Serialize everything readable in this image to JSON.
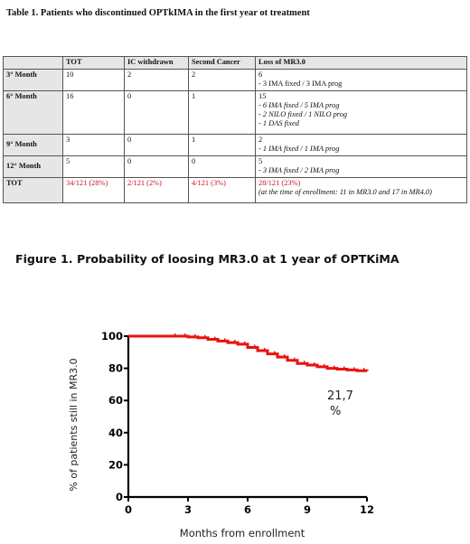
{
  "table": {
    "title": "Table 1. Patients who discontinued OPTkIMA in the first year ot treatment",
    "headers": [
      "",
      "TOT",
      "IC withdrawn",
      "Second Cancer",
      "Loss of MR3.0"
    ],
    "rows": [
      {
        "label": "3° Month",
        "tot": "10",
        "ic": "2",
        "second": "2",
        "loss": "6",
        "loss_details": [
          "- 3 IMA fixed / 3 IMA prog"
        ]
      },
      {
        "label": "6° Month",
        "tot": "16",
        "ic": "0",
        "second": "1",
        "loss": "15",
        "loss_details": [
          "- 6 IMA fixed / 5 IMA prog",
          "- 2 NILO fixed / 1 NILO prog",
          "- 1 DAS fixed"
        ]
      },
      {
        "label": "9° Month",
        "tot": "3",
        "ic": "0",
        "second": "1",
        "loss": "2",
        "loss_details": [
          "- 1 IMA fixed / 1 IMA prog"
        ]
      },
      {
        "label": "12° Month",
        "tot": "5",
        "ic": "0",
        "second": "0",
        "loss": "5",
        "loss_details": [
          "- 3 IMA fixed / 2 IMA prog"
        ]
      },
      {
        "label": "TOT",
        "tot": "34/121 (28%)",
        "ic": "2/121 (2%)",
        "second": "4/121 (3%)",
        "loss": "28/121 (23%)",
        "loss_details": [
          "(at the time of enrollment: 11 in MR3.0 and 17 in MR4.0)"
        ]
      }
    ],
    "highlight_color": "#c8102e"
  },
  "figure": {
    "title": "Figure 1. Probability of loosing MR3.0 at 1 year of OPTKiMA",
    "annotation_line1": "21,7",
    "annotation_line2": "%"
  },
  "chart_data": {
    "type": "line",
    "xlabel": "Months from enrollment",
    "ylabel": "% of patients still in MR3.0",
    "xlim": [
      0,
      12
    ],
    "ylim": [
      0,
      100
    ],
    "xticks": [
      "0",
      "3",
      "6",
      "9",
      "12"
    ],
    "yticks": [
      "0",
      "20",
      "40",
      "60",
      "80",
      "100"
    ],
    "series": [
      {
        "color": "#e8130c",
        "x": [
          0,
          2.5,
          3.0,
          3.5,
          4.0,
          4.5,
          5.0,
          5.5,
          6.0,
          6.5,
          7.0,
          7.5,
          8.0,
          8.5,
          9.0,
          9.5,
          10.0,
          10.5,
          11.0,
          11.5,
          12.0
        ],
        "y": [
          100,
          100,
          99.5,
          99,
          98,
          97,
          96,
          95,
          93,
          91,
          89,
          87,
          85,
          83,
          82,
          81,
          80,
          79.5,
          79,
          78.5,
          78.3
        ]
      }
    ],
    "grid": false
  }
}
